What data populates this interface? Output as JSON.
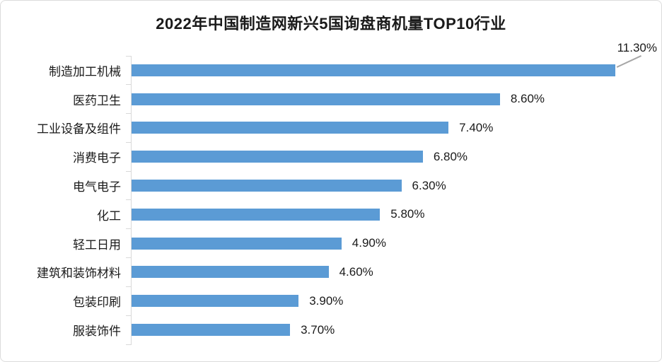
{
  "page": {
    "title": "2022年中国制造网新兴5国询盘商机量TOP10行业"
  },
  "chart_data": {
    "type": "bar",
    "orientation": "horizontal",
    "title": "2022年中国制造网新兴5国询盘商机量TOP10行业",
    "categories": [
      "制造加工机械",
      "医药卫生",
      "工业设备及组件",
      "消费电子",
      "电气电子",
      "化工",
      "轻工日用",
      "建筑和装饰材料",
      "包装印刷",
      "服装饰件"
    ],
    "values": [
      11.3,
      8.6,
      7.4,
      6.8,
      6.3,
      5.8,
      4.9,
      4.6,
      3.9,
      3.7
    ],
    "value_labels": [
      "11.30%",
      "8.60%",
      "7.40%",
      "6.80%",
      "6.30%",
      "5.80%",
      "4.90%",
      "4.60%",
      "3.90%",
      "3.70%"
    ],
    "xlim": [
      0,
      12.4
    ],
    "callout_index": 0,
    "bar_color": "#5B9BD5",
    "axis_color": "#D9D9D9",
    "leader_line_color": "#A6A6A6",
    "text_color": "#1A1A1A",
    "grid": "off",
    "legend": "none",
    "xlabel": "",
    "ylabel": ""
  }
}
